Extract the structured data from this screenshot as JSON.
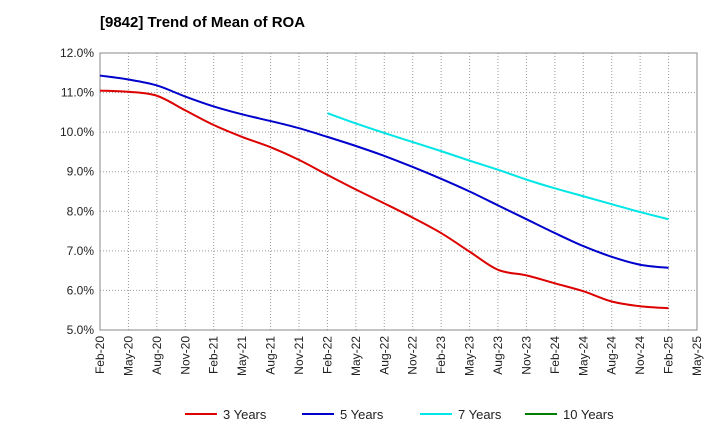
{
  "chart_data": {
    "type": "line",
    "title": "[9842]  Trend of Mean of ROA",
    "xlabel": "",
    "ylabel": "",
    "ylim": [
      5.0,
      12.0
    ],
    "yticks": [
      "5.0%",
      "6.0%",
      "7.0%",
      "8.0%",
      "9.0%",
      "10.0%",
      "11.0%",
      "12.0%"
    ],
    "x_tick_labels": [
      "Feb-20",
      "May-20",
      "Aug-20",
      "Nov-20",
      "Feb-21",
      "May-21",
      "Aug-21",
      "Nov-21",
      "Feb-22",
      "May-22",
      "Aug-22",
      "Nov-22",
      "Feb-23",
      "May-23",
      "Aug-23",
      "Nov-23",
      "Feb-24",
      "May-24",
      "Aug-24",
      "Nov-24",
      "Feb-25",
      "May-25"
    ],
    "grid": true,
    "legend_position": "bottom",
    "series": [
      {
        "name": "3 Years",
        "color": "#dd0000",
        "start_index": 0,
        "values": [
          11.05,
          11.02,
          10.92,
          10.55,
          10.18,
          9.88,
          9.62,
          9.3,
          8.92,
          8.55,
          8.2,
          7.84,
          7.45,
          6.98,
          6.52,
          6.38,
          6.18,
          5.98,
          5.72,
          5.6,
          5.55
        ]
      },
      {
        "name": "5 Years",
        "color": "#0000cc",
        "start_index": 0,
        "values": [
          11.43,
          11.33,
          11.18,
          10.9,
          10.65,
          10.45,
          10.28,
          10.1,
          9.88,
          9.65,
          9.4,
          9.12,
          8.82,
          8.5,
          8.15,
          7.8,
          7.45,
          7.12,
          6.85,
          6.65,
          6.57
        ]
      },
      {
        "name": "7 Years",
        "color": "#00e5e5",
        "start_index": 8,
        "values": [
          10.48,
          10.22,
          9.98,
          9.75,
          9.52,
          9.28,
          9.05,
          8.8,
          8.58,
          8.38,
          8.18,
          7.98,
          7.8
        ]
      },
      {
        "name": "10 Years",
        "color": "#008000",
        "start_index": 0,
        "values": []
      }
    ]
  }
}
